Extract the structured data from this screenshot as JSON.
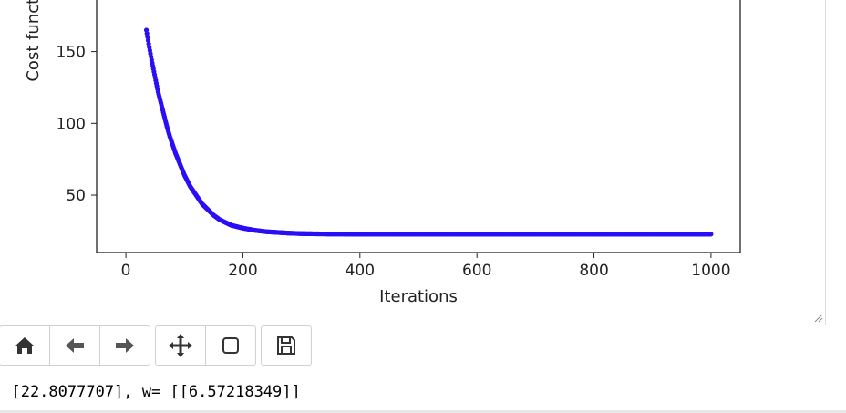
{
  "chart_data": {
    "type": "scatter",
    "title": "",
    "xlabel": "Iterations",
    "ylabel": "Cost function",
    "xlim": [
      -50,
      1050
    ],
    "ylim": [
      10,
      205
    ],
    "xticks": [
      0,
      200,
      400,
      600,
      800,
      1000
    ],
    "yticks": [
      50,
      100,
      150
    ],
    "grid": false,
    "marker_color": "#2a0ff5",
    "series": [
      {
        "values_description_free": true,
        "x": [
          35,
          40,
          45,
          50,
          55,
          60,
          65,
          70,
          75,
          80,
          85,
          90,
          95,
          100,
          110,
          120,
          130,
          140,
          150,
          160,
          170,
          180,
          190,
          200,
          220,
          240,
          260,
          280,
          300,
          330,
          360,
          400,
          450,
          500,
          600,
          700,
          800,
          900,
          1000
        ],
        "y": [
          165,
          153,
          142,
          132,
          122,
          114,
          106,
          98,
          91,
          85,
          79,
          74,
          69,
          64,
          56,
          50,
          44,
          40,
          36,
          33,
          31,
          29,
          28,
          27,
          25.5,
          24.5,
          24,
          23.5,
          23.2,
          23,
          22.9,
          22.85,
          22.82,
          22.81,
          22.81,
          22.81,
          22.81,
          22.81,
          22.81
        ]
      }
    ]
  },
  "toolbar": {
    "icons": [
      "home-icon",
      "back-arrow-icon",
      "forward-arrow-icon",
      "pan-icon",
      "zoom-rect-icon",
      "save-icon"
    ]
  },
  "output": {
    "text": ": [22.8077707], w= [[6.57218349]]"
  }
}
